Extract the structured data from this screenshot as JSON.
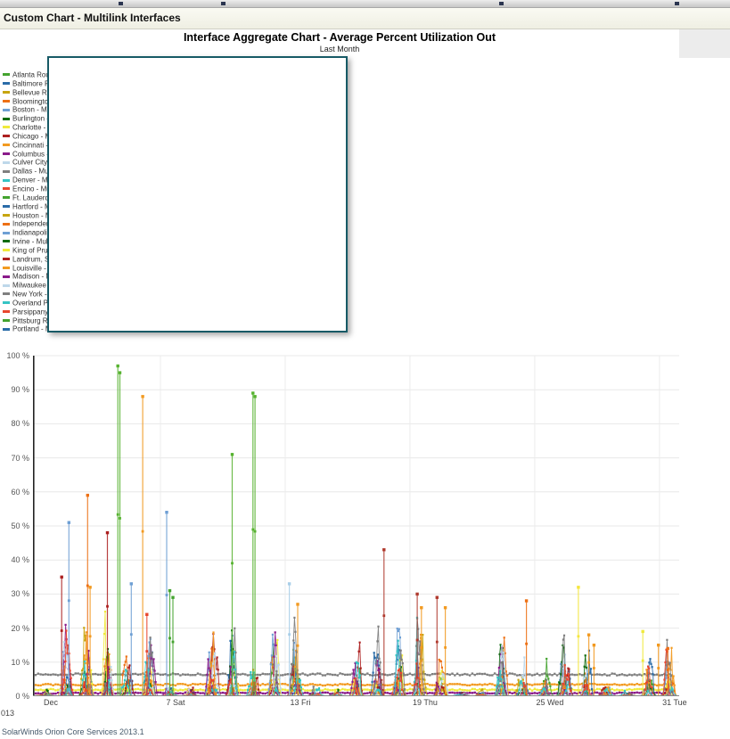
{
  "header": {
    "title": "Custom Chart - Multilink Interfaces"
  },
  "legend": {
    "items": [
      {
        "label": "Atlanta Rou",
        "color": "#44A32F"
      },
      {
        "label": "Baltimore R",
        "color": "#2A6CA8"
      },
      {
        "label": "Bellevue Ro",
        "color": "#C7A50F"
      },
      {
        "label": "Bloomingto",
        "color": "#ED7014"
      },
      {
        "label": "Boston - Mu",
        "color": "#6E9FD4"
      },
      {
        "label": "Burlington -",
        "color": "#0F6B0F"
      },
      {
        "label": "Charlotte - M",
        "color": "#EFE93C"
      },
      {
        "label": "Chicago - M",
        "color": "#AC2020"
      },
      {
        "label": "Cincinnati -",
        "color": "#F29A21"
      },
      {
        "label": "Columbus -",
        "color": "#8A1B8A"
      },
      {
        "label": "Culver City -",
        "color": "#BED8EA"
      },
      {
        "label": "Dallas - Mul",
        "color": "#7F7F7F"
      },
      {
        "label": "Denver - Mu",
        "color": "#35C4C4"
      },
      {
        "label": "Encino - Mu",
        "color": "#E8472F"
      },
      {
        "label": "Ft. Lauderd",
        "color": "#44A32F"
      },
      {
        "label": "Hartford - M",
        "color": "#2A6CA8"
      },
      {
        "label": "Houston - M",
        "color": "#C7A50F"
      },
      {
        "label": "Independen",
        "color": "#ED7014"
      },
      {
        "label": "Indianapolis",
        "color": "#6E9FD4"
      },
      {
        "label": "Irvine - Mult",
        "color": "#0F6B0F"
      },
      {
        "label": "King of Prus",
        "color": "#EFE93C"
      },
      {
        "label": "Landrum, S",
        "color": "#AC2020"
      },
      {
        "label": "Louisville - M",
        "color": "#F29A21"
      },
      {
        "label": "Madison - M",
        "color": "#8A1B8A"
      },
      {
        "label": "Milwaukee -",
        "color": "#BED8EA"
      },
      {
        "label": "New York -",
        "color": "#7F7F7F"
      },
      {
        "label": "Overland Pa",
        "color": "#35C4C4"
      },
      {
        "label": "Parsippany",
        "color": "#E8472F"
      },
      {
        "label": "Pittsburg R",
        "color": "#44A32F"
      },
      {
        "label": "Portland - M",
        "color": "#2A6CA8"
      }
    ]
  },
  "chart_data": {
    "type": "line",
    "title": "Interface Aggregate Chart - Average Percent Utilization Out",
    "subtitle": "Last Month",
    "x_year_label": "013",
    "unit": "percent",
    "ylim": [
      0,
      100
    ],
    "y_ticks": [
      100,
      90,
      80,
      70,
      60,
      50,
      40,
      30,
      20,
      10,
      0
    ],
    "y_tick_suffix": " %",
    "x_ticks": [
      {
        "day": 1,
        "label": "Dec"
      },
      {
        "day": 7,
        "label": "7 Sat"
      },
      {
        "day": 13,
        "label": "13 Fri"
      },
      {
        "day": 19,
        "label": "19 Thu"
      },
      {
        "day": 25,
        "label": "25 Wed"
      },
      {
        "day": 31,
        "label": "31 Tue"
      }
    ],
    "x_range_days": [
      1,
      31.68
    ],
    "grid": true,
    "legend_position": "left",
    "palette": [
      "#44A32F",
      "#2A6CA8",
      "#C7A50F",
      "#ED7014",
      "#6E9FD4",
      "#0F6B0F",
      "#EFE93C",
      "#AC2020",
      "#F29A21",
      "#8A1B8A",
      "#BED8EA",
      "#7F7F7F",
      "#35C4C4",
      "#E8472F"
    ],
    "baselines": [
      {
        "color": "#7F7F7F",
        "value": 6.4,
        "noise": 0.3
      },
      {
        "color": "#F29A21",
        "value": 3.4,
        "noise": 0.25
      },
      {
        "color": "#EFE93C",
        "value": 1.9,
        "noise": 0.25
      },
      {
        "color": "#8A1B8A",
        "value": 0.9,
        "noise": 0.2
      }
    ],
    "burst_days": [
      {
        "day": 1,
        "amp": 0.12
      },
      {
        "day": 2,
        "amp": 0.9
      },
      {
        "day": 3,
        "amp": 1.0
      },
      {
        "day": 4,
        "amp": 1.05
      },
      {
        "day": 5,
        "amp": 1.0
      },
      {
        "day": 6,
        "amp": 0.95
      },
      {
        "day": 7,
        "amp": 0.15
      },
      {
        "day": 8,
        "amp": 0.12
      },
      {
        "day": 9,
        "amp": 0.95
      },
      {
        "day": 10,
        "amp": 1.0
      },
      {
        "day": 11,
        "amp": 1.0
      },
      {
        "day": 12,
        "amp": 0.95
      },
      {
        "day": 13,
        "amp": 0.9
      },
      {
        "day": 14,
        "amp": 0.12
      },
      {
        "day": 15,
        "amp": 0.1
      },
      {
        "day": 16,
        "amp": 1.05
      },
      {
        "day": 17,
        "amp": 1.0
      },
      {
        "day": 18,
        "amp": 1.0
      },
      {
        "day": 19,
        "amp": 1.0
      },
      {
        "day": 20,
        "amp": 0.95
      },
      {
        "day": 21,
        "amp": 0.12
      },
      {
        "day": 22,
        "amp": 0.1
      },
      {
        "day": 23,
        "amp": 0.85
      },
      {
        "day": 24,
        "amp": 0.7
      },
      {
        "day": 25,
        "amp": 0.45
      },
      {
        "day": 26,
        "amp": 0.75
      },
      {
        "day": 27,
        "amp": 0.8
      },
      {
        "day": 28,
        "amp": 0.12
      },
      {
        "day": 29,
        "amp": 0.1
      },
      {
        "day": 30,
        "amp": 0.65
      },
      {
        "day": 31,
        "amp": 0.7
      }
    ],
    "spikes": [
      {
        "day": 2.25,
        "pct": 35,
        "color": "#AC2020"
      },
      {
        "day": 2.6,
        "pct": 51,
        "color": "#6E9FD4"
      },
      {
        "day": 3.5,
        "pct": 59,
        "color": "#ED7014"
      },
      {
        "day": 3.62,
        "pct": 32,
        "color": "#F29A21"
      },
      {
        "day": 4.45,
        "pct": 48,
        "color": "#AC2020"
      },
      {
        "day": 4.95,
        "pct": 97,
        "color": "#56B22F"
      },
      {
        "day": 5.05,
        "pct": 95,
        "color": "#56B22F"
      },
      {
        "day": 5.6,
        "pct": 33,
        "color": "#6E9FD4"
      },
      {
        "day": 6.15,
        "pct": 88,
        "color": "#F29A21"
      },
      {
        "day": 6.35,
        "pct": 24,
        "color": "#E8472F"
      },
      {
        "day": 7.3,
        "pct": 54,
        "color": "#6E9FD4"
      },
      {
        "day": 7.45,
        "pct": 31,
        "color": "#44A32F"
      },
      {
        "day": 7.6,
        "pct": 29,
        "color": "#44A32F"
      },
      {
        "day": 10.45,
        "pct": 71,
        "color": "#56B22F"
      },
      {
        "day": 11.45,
        "pct": 89,
        "color": "#56B22F"
      },
      {
        "day": 11.55,
        "pct": 88,
        "color": "#56B22F"
      },
      {
        "day": 13.2,
        "pct": 33,
        "color": "#A8CEE8"
      },
      {
        "day": 13.6,
        "pct": 27,
        "color": "#F29A21"
      },
      {
        "day": 17.75,
        "pct": 43,
        "color": "#B03A2E"
      },
      {
        "day": 19.35,
        "pct": 30,
        "color": "#B03A2E"
      },
      {
        "day": 19.55,
        "pct": 26,
        "color": "#F29A21"
      },
      {
        "day": 20.3,
        "pct": 29,
        "color": "#B03A2E"
      },
      {
        "day": 20.7,
        "pct": 26,
        "color": "#F29A21"
      },
      {
        "day": 24.6,
        "pct": 28,
        "color": "#ED7014"
      },
      {
        "day": 27.1,
        "pct": 32,
        "color": "#F5E63C"
      },
      {
        "day": 27.6,
        "pct": 18,
        "color": "#F29A21"
      },
      {
        "day": 27.85,
        "pct": 15,
        "color": "#F29A21"
      },
      {
        "day": 30.2,
        "pct": 19,
        "color": "#EFE93C"
      },
      {
        "day": 30.95,
        "pct": 15,
        "color": "#F29A21"
      },
      {
        "day": 31.4,
        "pct": 14,
        "color": "#ED7014"
      }
    ],
    "description": "Approximately 30 overlapping 5-minute interface utilization series; flat baselines near 6.4%, 3.4%, 1.9% and 0.9%; weekday business-hour bursts of 5-25%; occasional tall isolated spikes listed in spikes[]."
  },
  "footer": {
    "partial_text": "SolarWinds Orion Core Services 2013.1"
  }
}
